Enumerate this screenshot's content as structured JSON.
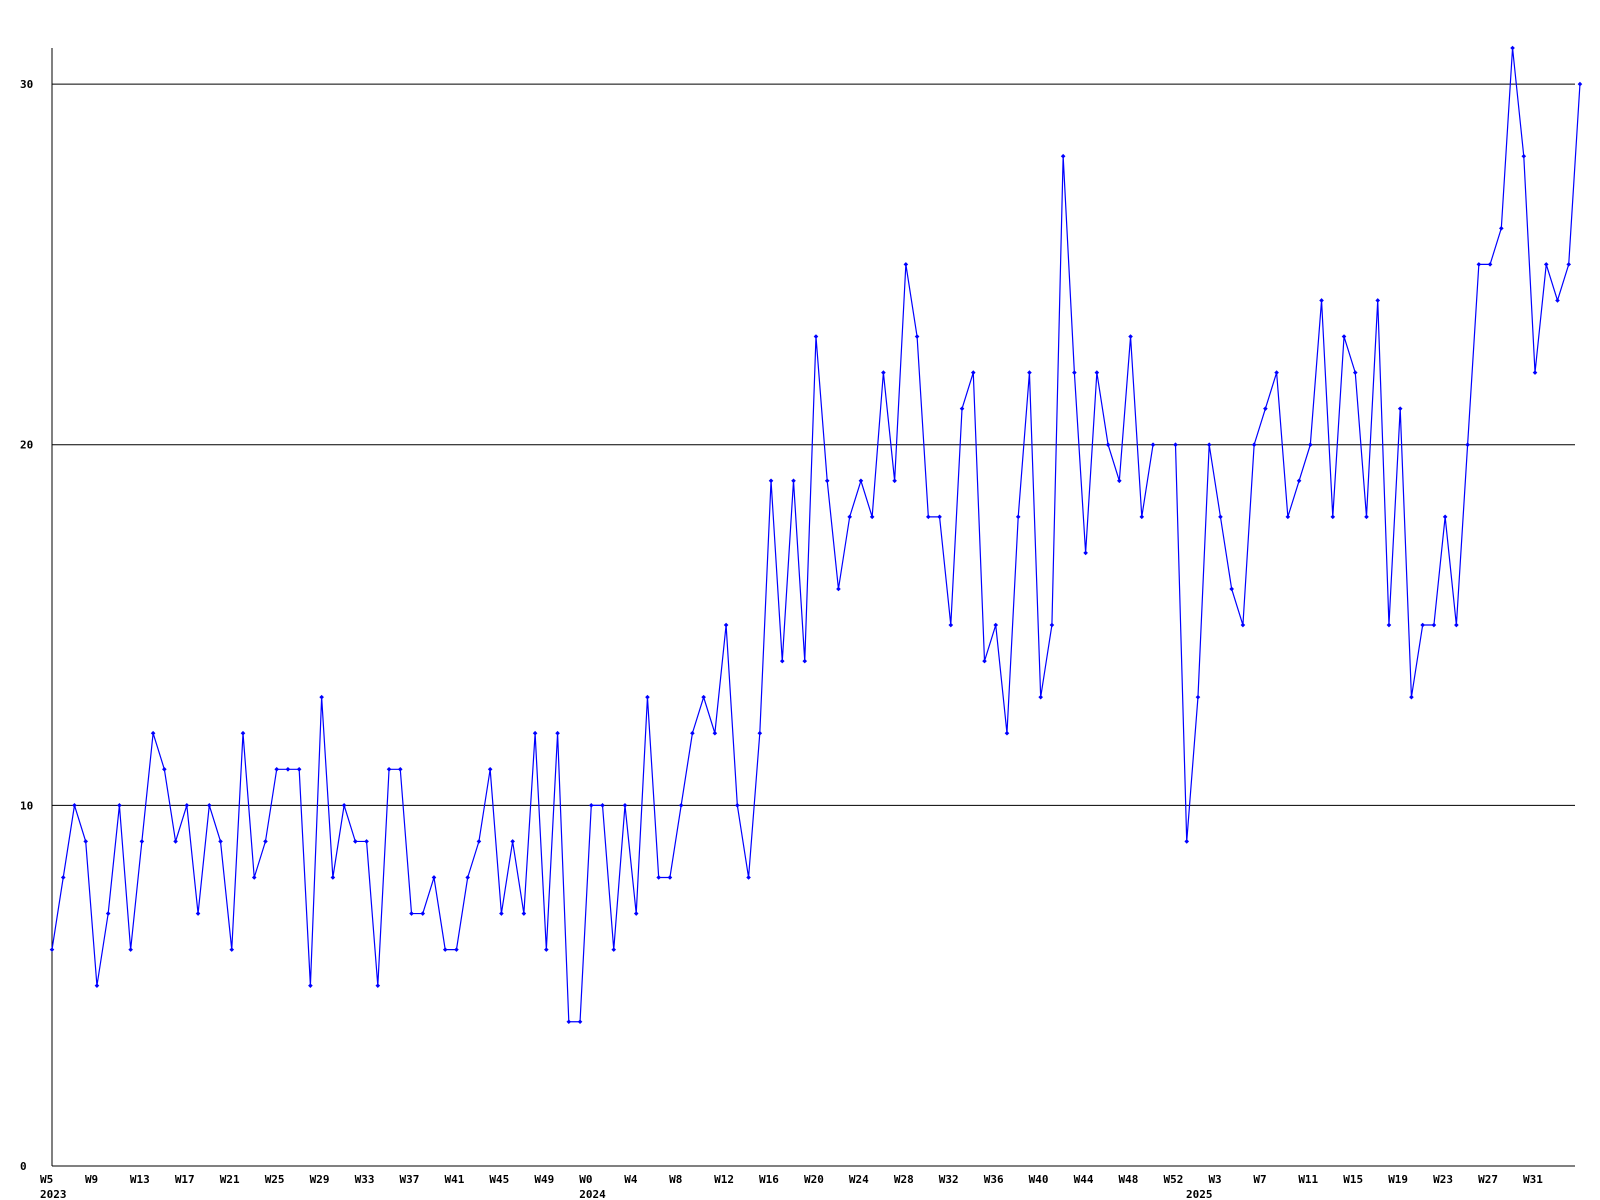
{
  "chart_data": {
    "type": "line",
    "title": "",
    "xlabel": "",
    "ylabel": "",
    "ylim": [
      0,
      31
    ],
    "y_ticks": [
      0,
      10,
      20,
      30
    ],
    "grid": {
      "horizontal": true,
      "vertical": false
    },
    "legend": null,
    "colors": {
      "line": "#0000ff",
      "marker": "#0000ff",
      "axis": "#000000",
      "grid": "#000000",
      "background": "#ffffff"
    },
    "x_tick_labels": [
      {
        "week_index": 0,
        "label": "W5"
      },
      {
        "week_index": 4,
        "label": "W9"
      },
      {
        "week_index": 8,
        "label": "W13"
      },
      {
        "week_index": 12,
        "label": "W17"
      },
      {
        "week_index": 16,
        "label": "W21"
      },
      {
        "week_index": 20,
        "label": "W25"
      },
      {
        "week_index": 24,
        "label": "W29"
      },
      {
        "week_index": 28,
        "label": "W33"
      },
      {
        "week_index": 32,
        "label": "W37"
      },
      {
        "week_index": 36,
        "label": "W41"
      },
      {
        "week_index": 40,
        "label": "W45"
      },
      {
        "week_index": 44,
        "label": "W49"
      },
      {
        "week_index": 48,
        "label": "W0"
      },
      {
        "week_index": 52,
        "label": "W4"
      },
      {
        "week_index": 56,
        "label": "W8"
      },
      {
        "week_index": 60,
        "label": "W12"
      },
      {
        "week_index": 64,
        "label": "W16"
      },
      {
        "week_index": 68,
        "label": "W20"
      },
      {
        "week_index": 72,
        "label": "W24"
      },
      {
        "week_index": 76,
        "label": "W28"
      },
      {
        "week_index": 80,
        "label": "W32"
      },
      {
        "week_index": 84,
        "label": "W36"
      },
      {
        "week_index": 88,
        "label": "W40"
      },
      {
        "week_index": 92,
        "label": "W44"
      },
      {
        "week_index": 96,
        "label": "W48"
      },
      {
        "week_index": 100,
        "label": "W52"
      },
      {
        "week_index": 104,
        "label": "W3"
      },
      {
        "week_index": 108,
        "label": "W7"
      },
      {
        "week_index": 112,
        "label": "W11"
      },
      {
        "week_index": 116,
        "label": "W15"
      },
      {
        "week_index": 120,
        "label": "W19"
      },
      {
        "week_index": 124,
        "label": "W23"
      },
      {
        "week_index": 128,
        "label": "W27"
      },
      {
        "week_index": 132,
        "label": "W31"
      }
    ],
    "year_labels": [
      {
        "week_index": 0,
        "label": "2023"
      },
      {
        "week_index": 48,
        "label": "2024"
      },
      {
        "week_index": 102,
        "label": "2025"
      }
    ],
    "series": [
      {
        "values": [
          6,
          8,
          10,
          9,
          5,
          7,
          10,
          6,
          9,
          12,
          11,
          9,
          10,
          7,
          10,
          9,
          6,
          12,
          8,
          9,
          11,
          11,
          11,
          5,
          13,
          8,
          10,
          9,
          9,
          5,
          11,
          11,
          7,
          7,
          8,
          6,
          6,
          8,
          9,
          11,
          7,
          9,
          7,
          12,
          6,
          12,
          4,
          4,
          10,
          10,
          6,
          10,
          7,
          13,
          8,
          8,
          10,
          12,
          13,
          12,
          15,
          10,
          8,
          12,
          19,
          14,
          19,
          14,
          23,
          19,
          16,
          18,
          19,
          18,
          22,
          19,
          25,
          23,
          18,
          18,
          15,
          21,
          22,
          14,
          15,
          12,
          18,
          22,
          13,
          15,
          28,
          22,
          17,
          22,
          20,
          19,
          23,
          18,
          20,
          null,
          20,
          9,
          13,
          20,
          18,
          16,
          15,
          20,
          21,
          22,
          18,
          19,
          20,
          24,
          18,
          23,
          22,
          18,
          24,
          15,
          21,
          13,
          15,
          15,
          18,
          15,
          20,
          25,
          25,
          26,
          31,
          28,
          22,
          25,
          24,
          25,
          30
        ]
      }
    ]
  }
}
